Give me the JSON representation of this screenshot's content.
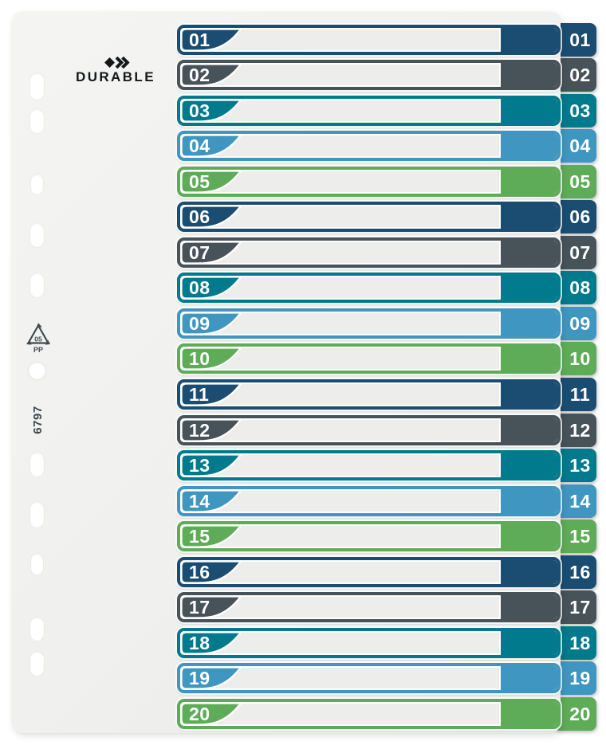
{
  "brand": {
    "name": "DURABLE"
  },
  "part_number": "6797",
  "recycling_mark": {
    "code": "05",
    "material": "PP"
  },
  "palette": {
    "navy": "#1B4D73",
    "slate": "#475259",
    "teal": "#007A8C",
    "blue": "#3F97C1",
    "green": "#5FAC58",
    "sheet": "#F0F0EE",
    "bar_interior": "#EDEDEB",
    "number_text": "#FFFFFF",
    "logo_ink": "#15181B",
    "mark_ink": "#3E4B52"
  },
  "color_cycle": [
    "navy",
    "slate",
    "teal",
    "blue",
    "green"
  ],
  "index_rows": [
    {
      "number": "01",
      "color": "navy"
    },
    {
      "number": "02",
      "color": "slate"
    },
    {
      "number": "03",
      "color": "teal"
    },
    {
      "number": "04",
      "color": "blue"
    },
    {
      "number": "05",
      "color": "green"
    },
    {
      "number": "06",
      "color": "navy"
    },
    {
      "number": "07",
      "color": "slate"
    },
    {
      "number": "08",
      "color": "teal"
    },
    {
      "number": "09",
      "color": "blue"
    },
    {
      "number": "10",
      "color": "green"
    },
    {
      "number": "11",
      "color": "navy"
    },
    {
      "number": "12",
      "color": "slate"
    },
    {
      "number": "13",
      "color": "teal"
    },
    {
      "number": "14",
      "color": "blue"
    },
    {
      "number": "15",
      "color": "green"
    },
    {
      "number": "16",
      "color": "navy"
    },
    {
      "number": "17",
      "color": "slate"
    },
    {
      "number": "18",
      "color": "teal"
    },
    {
      "number": "19",
      "color": "blue"
    },
    {
      "number": "20",
      "color": "green"
    }
  ]
}
